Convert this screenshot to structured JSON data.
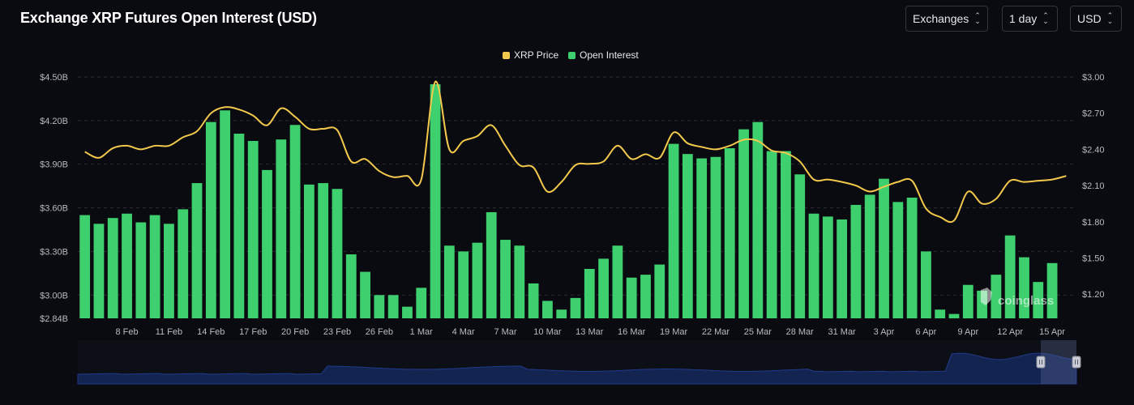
{
  "header": {
    "title": "Exchange XRP Futures Open Interest (USD)",
    "exchanges_label": "Exchanges",
    "interval_label": "1 day",
    "currency_label": "USD"
  },
  "watermark": "coinglass",
  "colors": {
    "bar": "#3ecf6e",
    "line": "#f2c94c",
    "grid": "#2a2d36",
    "navigator": "#1f3a8a"
  },
  "chart_data": {
    "type": "bar",
    "legend": [
      "XRP Price",
      "Open Interest"
    ],
    "legend_position": "top-center",
    "grid": true,
    "y_left_ticks": [
      "$2.84B",
      "$3.00B",
      "$3.30B",
      "$3.60B",
      "$3.90B",
      "$4.20B",
      "$4.50B"
    ],
    "y_left_range": [
      2.84,
      4.5
    ],
    "y_right_ticks": [
      "$1.20",
      "$1.50",
      "$1.80",
      "$2.10",
      "$2.40",
      "$2.70",
      "$3.00"
    ],
    "y_right_range": [
      1.0,
      3.0
    ],
    "x_tick_labels": [
      "8 Feb",
      "11 Feb",
      "14 Feb",
      "17 Feb",
      "20 Feb",
      "23 Feb",
      "26 Feb",
      "1 Mar",
      "4 Mar",
      "7 Mar",
      "10 Mar",
      "13 Mar",
      "16 Mar",
      "19 Mar",
      "22 Mar",
      "25 Mar",
      "28 Mar",
      "31 Mar",
      "3 Apr",
      "6 Apr",
      "9 Apr",
      "12 Apr",
      "15 Apr"
    ],
    "x": [
      "5 Feb",
      "6 Feb",
      "7 Feb",
      "8 Feb",
      "9 Feb",
      "10 Feb",
      "11 Feb",
      "12 Feb",
      "13 Feb",
      "14 Feb",
      "15 Feb",
      "16 Feb",
      "17 Feb",
      "18 Feb",
      "19 Feb",
      "20 Feb",
      "21 Feb",
      "22 Feb",
      "23 Feb",
      "24 Feb",
      "25 Feb",
      "26 Feb",
      "27 Feb",
      "28 Feb",
      "1 Mar",
      "2 Mar",
      "3 Mar",
      "4 Mar",
      "5 Mar",
      "6 Mar",
      "7 Mar",
      "8 Mar",
      "9 Mar",
      "10 Mar",
      "11 Mar",
      "12 Mar",
      "13 Mar",
      "14 Mar",
      "15 Mar",
      "16 Mar",
      "17 Mar",
      "18 Mar",
      "19 Mar",
      "20 Mar",
      "21 Mar",
      "22 Mar",
      "23 Mar",
      "24 Mar",
      "25 Mar",
      "26 Mar",
      "27 Mar",
      "28 Mar",
      "29 Mar",
      "30 Mar",
      "31 Mar",
      "1 Apr",
      "2 Apr",
      "3 Apr",
      "4 Apr",
      "5 Apr",
      "6 Apr",
      "7 Apr",
      "8 Apr",
      "9 Apr",
      "10 Apr",
      "11 Apr",
      "12 Apr",
      "13 Apr",
      "14 Apr",
      "15 Apr",
      "16 Apr"
    ],
    "series": [
      {
        "name": "Open Interest",
        "axis": "left",
        "values": [
          3.55,
          3.49,
          3.53,
          3.56,
          3.5,
          3.55,
          3.49,
          3.59,
          3.77,
          4.19,
          4.27,
          4.11,
          4.06,
          3.86,
          4.07,
          4.17,
          3.76,
          3.77,
          3.73,
          3.28,
          3.16,
          3.0,
          3.0,
          2.92,
          3.05,
          4.45,
          3.34,
          3.3,
          3.36,
          3.57,
          3.38,
          3.34,
          3.08,
          2.96,
          2.9,
          2.98,
          3.18,
          3.25,
          3.34,
          3.12,
          3.14,
          3.21,
          4.04,
          3.97,
          3.94,
          3.95,
          4.01,
          4.14,
          4.19,
          3.99,
          3.99,
          3.83,
          3.56,
          3.54,
          3.52,
          3.62,
          3.69,
          3.8,
          3.64,
          3.67,
          3.3,
          2.9,
          2.87,
          3.07,
          3.03,
          3.14,
          3.41,
          3.26,
          3.09,
          3.22,
          null
        ]
      },
      {
        "name": "XRP Price",
        "axis": "right",
        "values": [
          2.38,
          2.33,
          2.41,
          2.43,
          2.4,
          2.43,
          2.43,
          2.5,
          2.55,
          2.7,
          2.75,
          2.73,
          2.68,
          2.6,
          2.74,
          2.67,
          2.57,
          2.57,
          2.56,
          2.3,
          2.32,
          2.22,
          2.17,
          2.18,
          2.15,
          2.96,
          2.4,
          2.47,
          2.51,
          2.6,
          2.43,
          2.27,
          2.25,
          2.05,
          2.13,
          2.27,
          2.28,
          2.3,
          2.43,
          2.32,
          2.36,
          2.33,
          2.54,
          2.45,
          2.42,
          2.4,
          2.43,
          2.48,
          2.47,
          2.39,
          2.37,
          2.3,
          2.15,
          2.15,
          2.13,
          2.1,
          2.05,
          2.09,
          2.13,
          2.14,
          1.91,
          1.84,
          1.81,
          2.05,
          1.95,
          1.99,
          2.14,
          2.13,
          2.14,
          2.15,
          2.18
        ]
      }
    ]
  }
}
